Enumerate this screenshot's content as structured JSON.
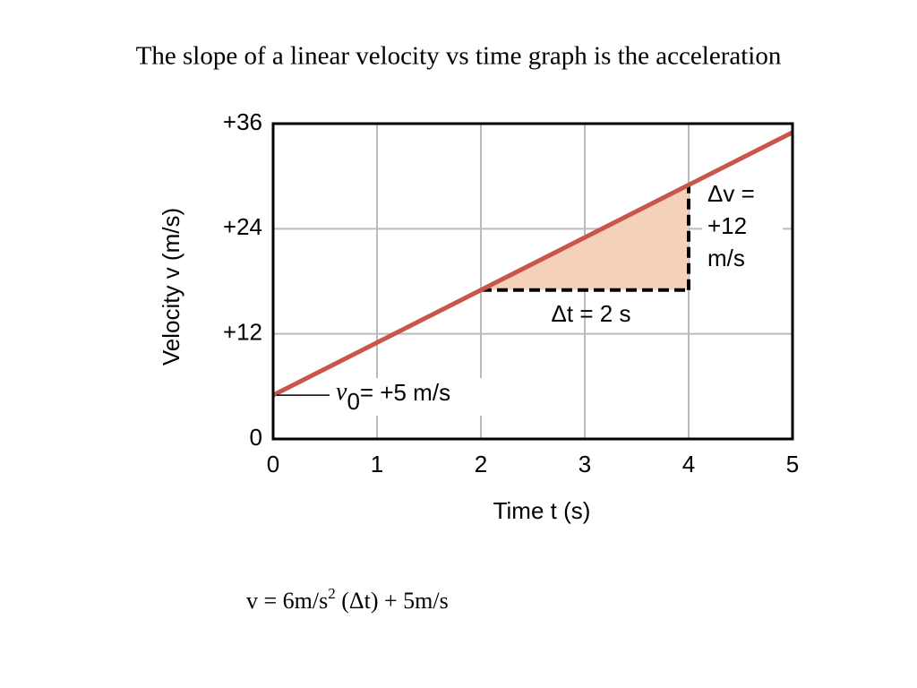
{
  "title": "The slope of a linear velocity vs time graph is the acceleration",
  "chart_data": {
    "type": "line",
    "x": [
      0,
      2,
      4,
      5
    ],
    "values": [
      5,
      17,
      29,
      35
    ],
    "color": "#c8564b",
    "xlim": [
      0,
      5
    ],
    "xticks": [
      0,
      1,
      2,
      3,
      4,
      5
    ],
    "ylim": [
      0,
      36
    ],
    "yticks": [
      0,
      {
        "value": 12,
        "label": "+12"
      },
      {
        "value": 24,
        "label": "+24"
      },
      {
        "value": 36,
        "label": "+36"
      }
    ],
    "grid": true,
    "xlabel": "Time t (s)",
    "ylabel": "Velocity v (m/s)",
    "annotations": {
      "dt": "Δt = 2 s",
      "dv": [
        "Δv =",
        "+12",
        "m/s"
      ],
      "v0": {
        "symbol": "v",
        "sub": "0",
        "text": "= +5 m/s"
      }
    },
    "triangle_color": "#f5d0bb"
  },
  "formula": {
    "main": "v = 6m/s",
    "sup": "2",
    "rest": " (Δt) + 5m/s"
  }
}
